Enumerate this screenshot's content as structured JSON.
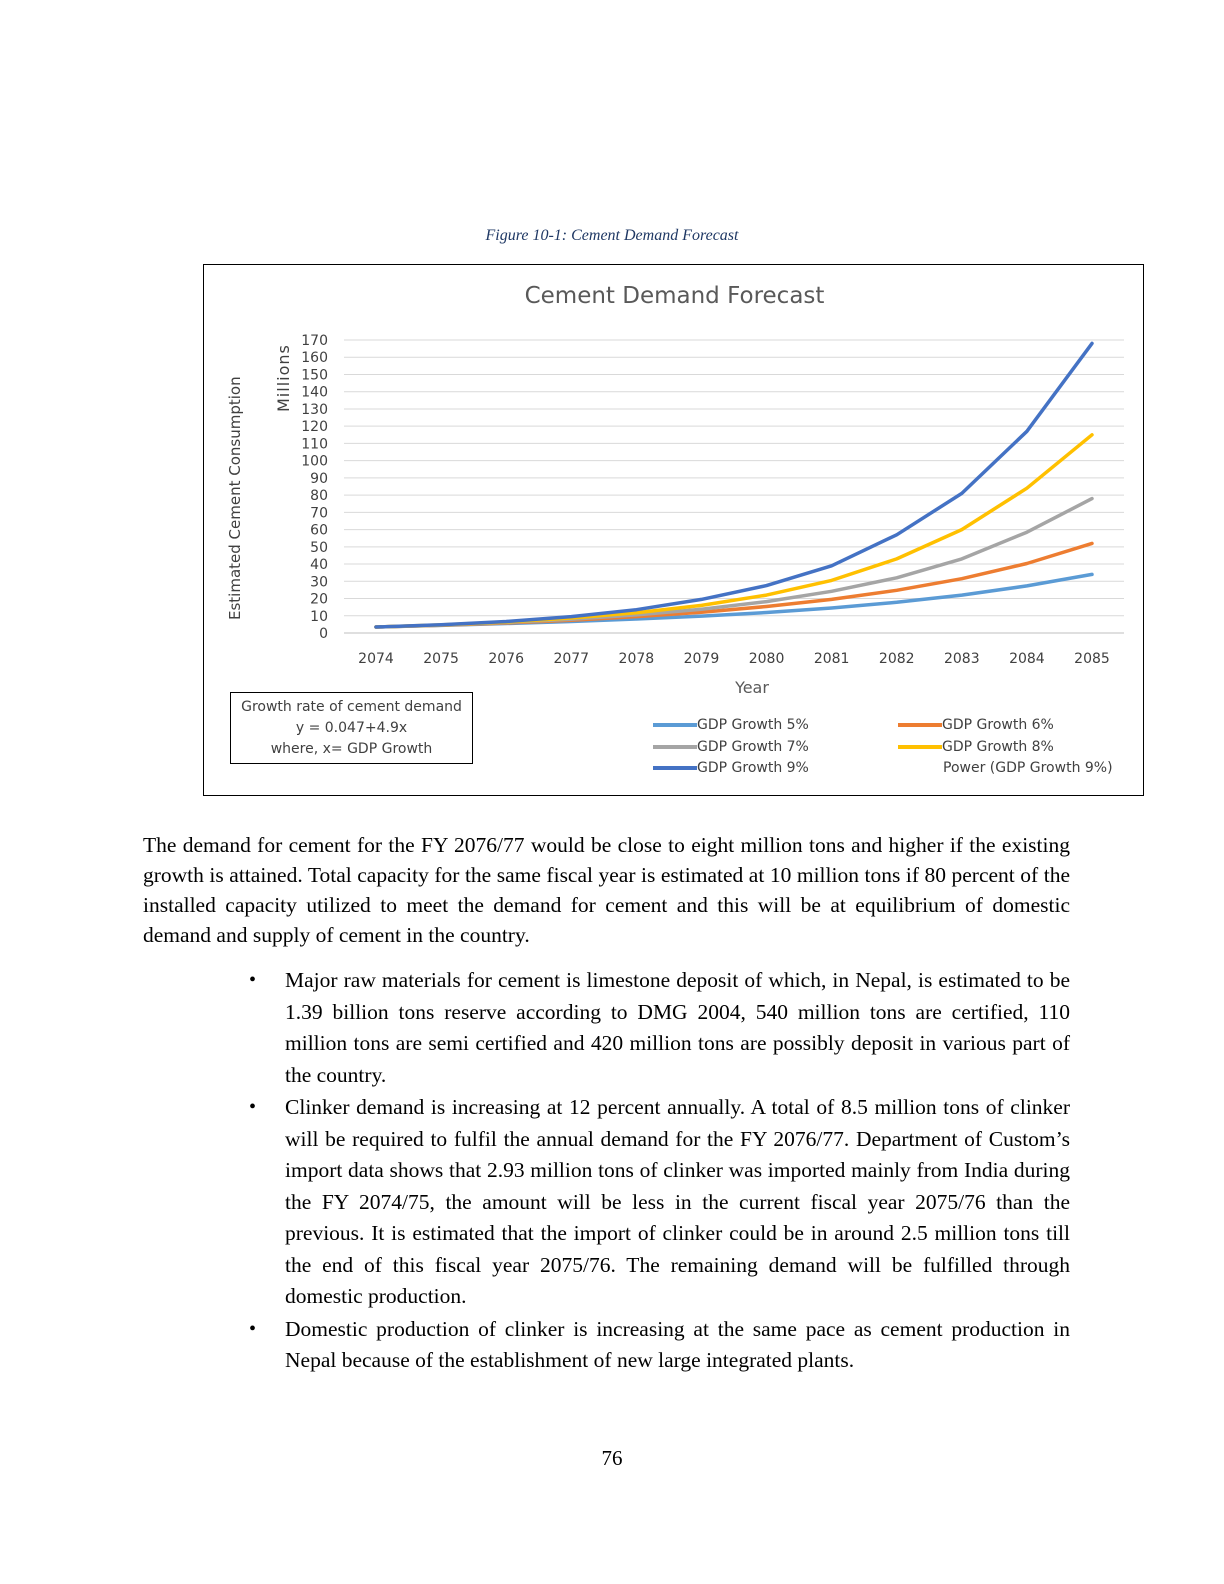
{
  "figure_caption": "Figure 10-1: Cement Demand Forecast",
  "chart_data": {
    "type": "line",
    "title": "Cement Demand Forecast",
    "xlabel": "Year",
    "ylabel": "Estimated Cement Consumption",
    "y_unit_label": "Millions",
    "categories": [
      "2074",
      "2075",
      "2076",
      "2077",
      "2078",
      "2079",
      "2080",
      "2081",
      "2082",
      "2083",
      "2084",
      "2085"
    ],
    "ylim": [
      0,
      170
    ],
    "yticks": [
      0,
      10,
      20,
      30,
      40,
      50,
      60,
      70,
      80,
      90,
      100,
      110,
      120,
      130,
      140,
      150,
      160,
      170
    ],
    "grid": true,
    "legend_position": "bottom-right",
    "series": [
      {
        "name": "GDP Growth 5%",
        "color": "#5b9bd5",
        "values": [
          3.5,
          4.4,
          5.5,
          6.7,
          8.1,
          9.8,
          11.9,
          14.5,
          17.8,
          22.0,
          27.3,
          34.0
        ]
      },
      {
        "name": "GDP Growth 6%",
        "color": "#ed7d31",
        "values": [
          3.5,
          4.5,
          5.8,
          7.4,
          9.5,
          12.0,
          15.4,
          19.5,
          24.8,
          31.5,
          40.3,
          52.0
        ]
      },
      {
        "name": "GDP Growth 7%",
        "color": "#a5a5a5",
        "values": [
          3.5,
          4.6,
          6.1,
          8.0,
          10.5,
          13.8,
          18.2,
          24.2,
          32.0,
          43.0,
          58.5,
          78.0
        ]
      },
      {
        "name": "GDP Growth 8%",
        "color": "#ffc000",
        "values": [
          3.5,
          4.7,
          6.4,
          8.7,
          11.8,
          16.0,
          22.0,
          30.5,
          43.0,
          60.0,
          84.0,
          115.0
        ]
      },
      {
        "name": "GDP Growth 9%",
        "color": "#4472c4",
        "values": [
          3.5,
          4.8,
          6.7,
          9.5,
          13.5,
          19.5,
          27.5,
          39.0,
          57.0,
          81.0,
          117.0,
          168.0
        ]
      }
    ],
    "trendline_legend_label": "Power (GDP Growth 9%)",
    "annotation": {
      "title": "Growth rate of cement demand",
      "line1": "y = 0.047+4.9x",
      "line2": "where, x= GDP Growth"
    }
  },
  "paragraph": "The demand for cement for the FY 2076/77 would be close to eight million tons and higher if the existing growth is attained. Total capacity for the same fiscal year is estimated at 10 million tons if 80 percent of the installed capacity utilized to meet the demand for cement and this will be at equilibrium of domestic demand and supply of cement in the country.",
  "bullet_symbol": "•",
  "bullets": [
    "Major raw materials for cement is limestone deposit of which, in Nepal, is estimated to be 1.39 billion tons reserve according to DMG 2004, 540 million tons are certified, 110 million tons are semi certified and 420 million tons are possibly deposit in various part of the country.",
    "Clinker demand is increasing at 12 percent annually. A total of 8.5 million tons of clinker will be required to fulfil the annual demand for the FY 2076/77. Department of Custom’s import data shows that 2.93 million tons of clinker was imported mainly from India during the FY 2074/75, the amount will be less in the current fiscal year 2075/76 than the previous. It is estimated that the import of clinker could be in around 2.5 million tons till the end of this fiscal year 2075/76. The remaining demand will be fulfilled through domestic production.",
    "Domestic production of clinker is increasing at the same pace as cement production in Nepal because of the establishment of new large integrated plants."
  ],
  "page_number": "76"
}
